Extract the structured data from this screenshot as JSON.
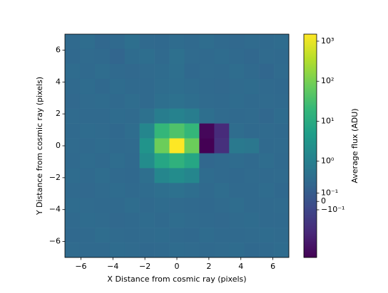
{
  "chart_data": {
    "type": "heatmap",
    "xlabel": "X Distance from cosmic ray (pixels)",
    "ylabel": "Y Distance from cosmic ray (pixels)",
    "colorbar_label": "Average flux (ADU)",
    "xlim": [
      -7,
      7
    ],
    "ylim": [
      -7,
      7
    ],
    "xticks": [
      {
        "value": -6,
        "label": "−6"
      },
      {
        "value": -4,
        "label": "−4"
      },
      {
        "value": -2,
        "label": "−2"
      },
      0,
      2,
      4,
      6
    ],
    "yticks": [
      {
        "value": -6,
        "label": "−6"
      },
      {
        "value": -4,
        "label": "−4"
      },
      {
        "value": -2,
        "label": "−2"
      },
      0,
      2,
      4,
      6
    ],
    "zscale": "asinh",
    "zlim": [
      -2.5,
      1500
    ],
    "zticks": [
      {
        "value": 1000,
        "label": "10³"
      },
      {
        "value": 100,
        "label": "10²"
      },
      {
        "value": 10,
        "label": "10¹"
      },
      {
        "value": 1,
        "label": "10⁰"
      },
      {
        "value": 0.1,
        "label": "10⁻¹"
      },
      0,
      {
        "value": -0.1,
        "label": "−10⁻¹"
      }
    ],
    "colormap": "viridis",
    "z": [
      [
        0.3,
        0.35,
        0.25,
        0.3,
        0.4,
        0.3,
        0.28,
        0.33,
        0.3,
        0.36,
        0.3,
        0.27,
        0.32,
        0.3,
        0.34
      ],
      [
        0.28,
        0.32,
        0.3,
        0.22,
        0.33,
        0.38,
        0.3,
        0.42,
        0.31,
        0.29,
        0.33,
        0.3,
        0.26,
        0.31,
        0.3
      ],
      [
        0.33,
        0.29,
        0.36,
        0.3,
        0.27,
        0.31,
        0.34,
        0.4,
        0.28,
        0.32,
        0.3,
        0.36,
        0.3,
        0.24,
        0.32
      ],
      [
        0.3,
        0.33,
        0.28,
        0.34,
        0.3,
        0.29,
        0.36,
        0.38,
        0.33,
        0.3,
        0.27,
        0.31,
        0.34,
        0.3,
        0.28
      ],
      [
        0.27,
        0.31,
        0.33,
        0.3,
        0.35,
        0.3,
        0.4,
        0.45,
        0.38,
        0.31,
        0.3,
        0.33,
        0.29,
        0.32,
        0.3
      ],
      [
        0.32,
        0.3,
        0.29,
        0.33,
        0.31,
        0.45,
        0.9,
        1.2,
        0.9,
        0.4,
        0.32,
        0.3,
        0.31,
        0.26,
        0.33
      ],
      [
        0.3,
        0.34,
        0.31,
        0.28,
        0.36,
        1.5,
        20,
        40,
        20,
        -2.0,
        -0.5,
        0.35,
        0.3,
        0.31,
        0.29
      ],
      [
        0.31,
        0.29,
        0.33,
        0.3,
        0.32,
        3.0,
        80,
        1500,
        80,
        -2.5,
        -0.4,
        0.7,
        0.65,
        0.3,
        0.32
      ],
      [
        0.29,
        0.33,
        0.3,
        0.35,
        0.3,
        2.0,
        8,
        15,
        8,
        0.25,
        0.3,
        0.33,
        0.29,
        0.36,
        0.3
      ],
      [
        0.33,
        0.3,
        0.36,
        0.3,
        0.28,
        0.4,
        1.5,
        2.0,
        1.5,
        0.33,
        0.3,
        0.28,
        0.32,
        0.3,
        0.31
      ],
      [
        0.3,
        0.27,
        0.31,
        0.33,
        0.3,
        0.34,
        0.4,
        0.45,
        0.38,
        0.3,
        0.35,
        0.3,
        0.3,
        0.33,
        0.28
      ],
      [
        0.34,
        0.31,
        0.29,
        0.3,
        0.36,
        0.3,
        0.33,
        0.31,
        0.3,
        0.28,
        0.32,
        0.36,
        0.3,
        0.29,
        0.32
      ],
      [
        0.3,
        0.33,
        0.32,
        0.27,
        0.3,
        0.33,
        0.29,
        0.35,
        0.31,
        0.3,
        0.27,
        0.31,
        0.33,
        0.3,
        0.3
      ],
      [
        0.28,
        0.3,
        0.35,
        0.31,
        0.29,
        0.31,
        0.33,
        0.3,
        0.28,
        0.33,
        0.3,
        0.29,
        0.32,
        0.34,
        0.31
      ],
      [
        0.32,
        0.29,
        0.3,
        0.33,
        0.31,
        0.28,
        0.3,
        0.34,
        0.32,
        0.3,
        0.31,
        0.33,
        0.28,
        0.3,
        0.33
      ]
    ]
  }
}
